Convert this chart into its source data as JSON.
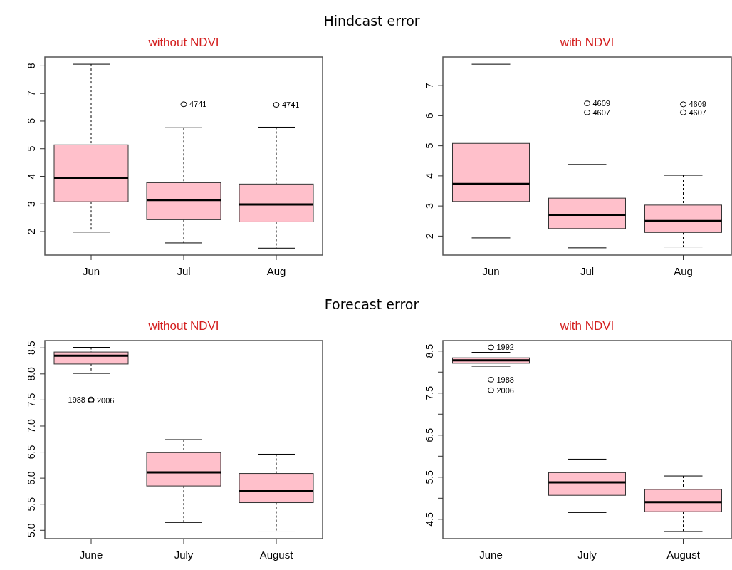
{
  "chart_data": [
    {
      "type": "box",
      "title": "without NDVI",
      "annotations": [
        "Hindcast error",
        "4741",
        "4741"
      ],
      "categories": [
        "Jun",
        "Jul",
        "Aug"
      ],
      "color": "#ffc0cb",
      "ylim": [
        1.15,
        8.32
      ],
      "yticks": [
        2,
        3,
        4,
        5,
        6,
        7,
        8
      ],
      "boxes": [
        {
          "low": 1.98,
          "q1": 3.08,
          "median": 3.95,
          "q3": 5.14,
          "high": 8.06
        },
        {
          "low": 1.59,
          "q1": 2.43,
          "median": 3.14,
          "q3": 3.77,
          "high": 5.76,
          "outliers": [
            6.61
          ]
        },
        {
          "low": 1.4,
          "q1": 2.35,
          "median": 2.98,
          "q3": 3.72,
          "high": 5.78,
          "outliers": [
            6.59
          ]
        }
      ]
    },
    {
      "type": "box",
      "title": "with NDVI",
      "annotations": [
        "4609",
        "4607",
        "4609",
        "4607"
      ],
      "categories": [
        "Jun",
        "Jul",
        "Aug"
      ],
      "color": "#ffc0cb",
      "ylim": [
        1.37,
        7.95
      ],
      "yticks": [
        2,
        3,
        4,
        5,
        6,
        7
      ],
      "boxes": [
        {
          "low": 1.94,
          "q1": 3.15,
          "median": 3.73,
          "q3": 5.08,
          "high": 7.71
        },
        {
          "low": 1.61,
          "q1": 2.25,
          "median": 2.71,
          "q3": 3.26,
          "high": 4.38,
          "outliers": [
            6.41,
            6.11
          ]
        },
        {
          "low": 1.64,
          "q1": 2.12,
          "median": 2.5,
          "q3": 3.03,
          "high": 4.02,
          "outliers": [
            6.38,
            6.11
          ]
        }
      ]
    },
    {
      "type": "box",
      "title": "without NDVI",
      "annotations": [
        "Forecast error",
        "2006",
        "1988"
      ],
      "categories": [
        "June",
        "July",
        "August"
      ],
      "color": "#ffc0cb",
      "ylim": [
        4.84,
        8.64
      ],
      "yticks": [
        {
          "value": 5,
          "label": "5.0"
        },
        5.5,
        {
          "value": 6,
          "label": "6.0"
        },
        6.5,
        {
          "value": 7,
          "label": "7.0"
        },
        7.5,
        {
          "value": 8,
          "label": "8.0"
        },
        8.5
      ],
      "boxes": [
        {
          "low": 8.01,
          "q1": 8.19,
          "median": 8.35,
          "q3": 8.42,
          "high": 8.51,
          "outliers": [
            7.49,
            7.51
          ]
        },
        {
          "low": 5.15,
          "q1": 5.85,
          "median": 6.11,
          "q3": 6.49,
          "high": 6.74
        },
        {
          "low": 4.97,
          "q1": 5.53,
          "median": 5.75,
          "q3": 6.09,
          "high": 6.46
        }
      ]
    },
    {
      "type": "box",
      "title": "with NDVI",
      "annotations": [
        "1992",
        "1988",
        "2006"
      ],
      "categories": [
        "June",
        "July",
        "August"
      ],
      "color": "#ffc0cb",
      "ylim": [
        4.04,
        8.75
      ],
      "yticks": [
        4.5,
        {
          "value": 5,
          "label": null
        },
        5.5,
        {
          "value": 6,
          "label": null
        },
        6.5,
        {
          "value": 7,
          "label": null
        },
        7.5,
        {
          "value": 8,
          "label": null
        },
        8.5
      ],
      "boxes": [
        {
          "low": 8.14,
          "q1": 8.21,
          "median": 8.28,
          "q3": 8.34,
          "high": 8.47,
          "outliers": [
            8.59,
            7.82,
            7.57
          ]
        },
        {
          "low": 4.66,
          "q1": 5.07,
          "median": 5.38,
          "q3": 5.61,
          "high": 5.93
        },
        {
          "low": 4.21,
          "q1": 4.68,
          "median": 4.91,
          "q3": 5.21,
          "high": 5.53
        }
      ]
    }
  ]
}
